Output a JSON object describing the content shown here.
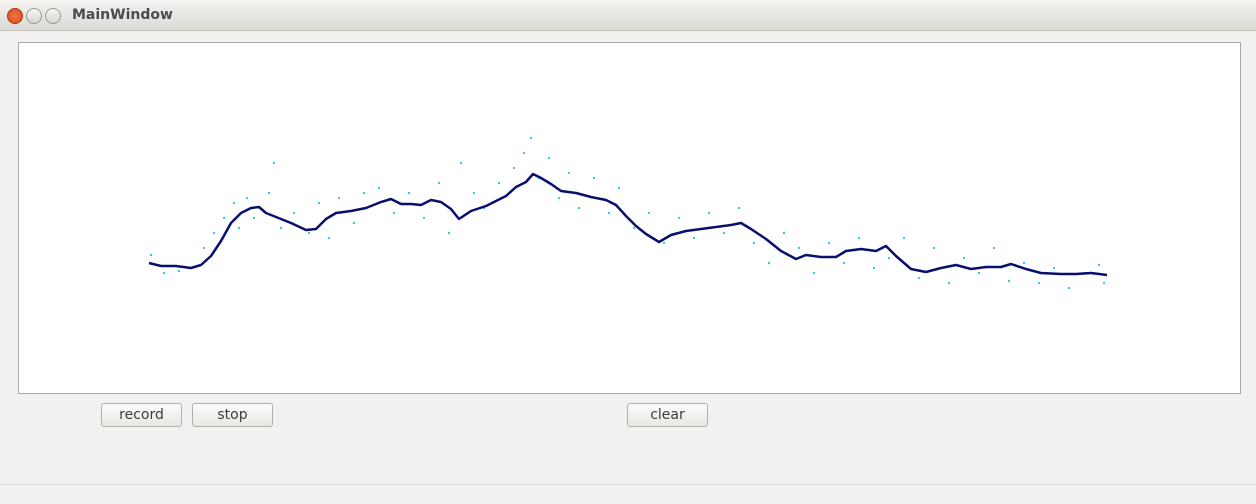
{
  "window": {
    "title": "MainWindow"
  },
  "buttons": [
    "record",
    "stop",
    "clear"
  ],
  "chart_data": {
    "type": "line",
    "xlim": [
      0,
      1221
    ],
    "ylim": [
      0,
      350
    ],
    "series": [
      {
        "type": "scatter",
        "color": "#22d3ee",
        "x": [
          132,
          145,
          160,
          185,
          195,
          205,
          215,
          220,
          228,
          235,
          250,
          255,
          262,
          275,
          290,
          300,
          310,
          320,
          335,
          345,
          360,
          375,
          390,
          405,
          420,
          430,
          442,
          455,
          465,
          480,
          495,
          505,
          512,
          520,
          530,
          540,
          550,
          560,
          575,
          590,
          600,
          615,
          630,
          645,
          660,
          675,
          690,
          705,
          720,
          735,
          750,
          765,
          780,
          795,
          810,
          825,
          840,
          855,
          870,
          885,
          900,
          915,
          930,
          945,
          960,
          975,
          990,
          1005,
          1020,
          1035,
          1050,
          1065,
          1080,
          1085
        ],
        "values": [
          138,
          120,
          122,
          145,
          160,
          175,
          190,
          165,
          195,
          175,
          200,
          230,
          165,
          180,
          160,
          190,
          155,
          195,
          170,
          200,
          205,
          180,
          200,
          175,
          210,
          160,
          230,
          200,
          185,
          210,
          225,
          240,
          255,
          215,
          235,
          195,
          220,
          185,
          215,
          180,
          205,
          165,
          180,
          150,
          175,
          155,
          180,
          160,
          185,
          150,
          130,
          160,
          145,
          120,
          150,
          130,
          155,
          125,
          135,
          155,
          115,
          145,
          110,
          135,
          120,
          145,
          112,
          130,
          110,
          125,
          105,
          120,
          128,
          110
        ]
      },
      {
        "type": "line",
        "color": "#0a0f6e",
        "x": [
          130,
          142,
          157,
          172,
          182,
          192,
          202,
          212,
          222,
          232,
          240,
          247,
          257,
          272,
          287,
          297,
          307,
          317,
          332,
          347,
          362,
          372,
          382,
          392,
          402,
          412,
          422,
          432,
          440,
          452,
          467,
          477,
          487,
          497,
          507,
          514,
          522,
          532,
          542,
          557,
          572,
          587,
          597,
          607,
          617,
          627,
          640,
          652,
          667,
          682,
          697,
          712,
          722,
          732,
          747,
          762,
          777,
          787,
          802,
          817,
          827,
          842,
          857,
          867,
          877,
          892,
          907,
          922,
          937,
          952,
          967,
          982,
          992,
          1007,
          1022,
          1042,
          1057,
          1072,
          1088
        ],
        "values": [
          130,
          127,
          127,
          125,
          128,
          137,
          152,
          170,
          180,
          185,
          186,
          180,
          176,
          170,
          163,
          164,
          174,
          180,
          182,
          185,
          191,
          194,
          189,
          189,
          188,
          193,
          191,
          184,
          174,
          182,
          187,
          192,
          197,
          206,
          211,
          219,
          215,
          209,
          202,
          200,
          196,
          193,
          188,
          177,
          167,
          159,
          151,
          158,
          162,
          164,
          166,
          168,
          170,
          164,
          154,
          142,
          134,
          138,
          136,
          136,
          142,
          144,
          142,
          147,
          137,
          124,
          121,
          125,
          128,
          124,
          126,
          126,
          129,
          124,
          120,
          119,
          119,
          120,
          118
        ]
      }
    ]
  }
}
